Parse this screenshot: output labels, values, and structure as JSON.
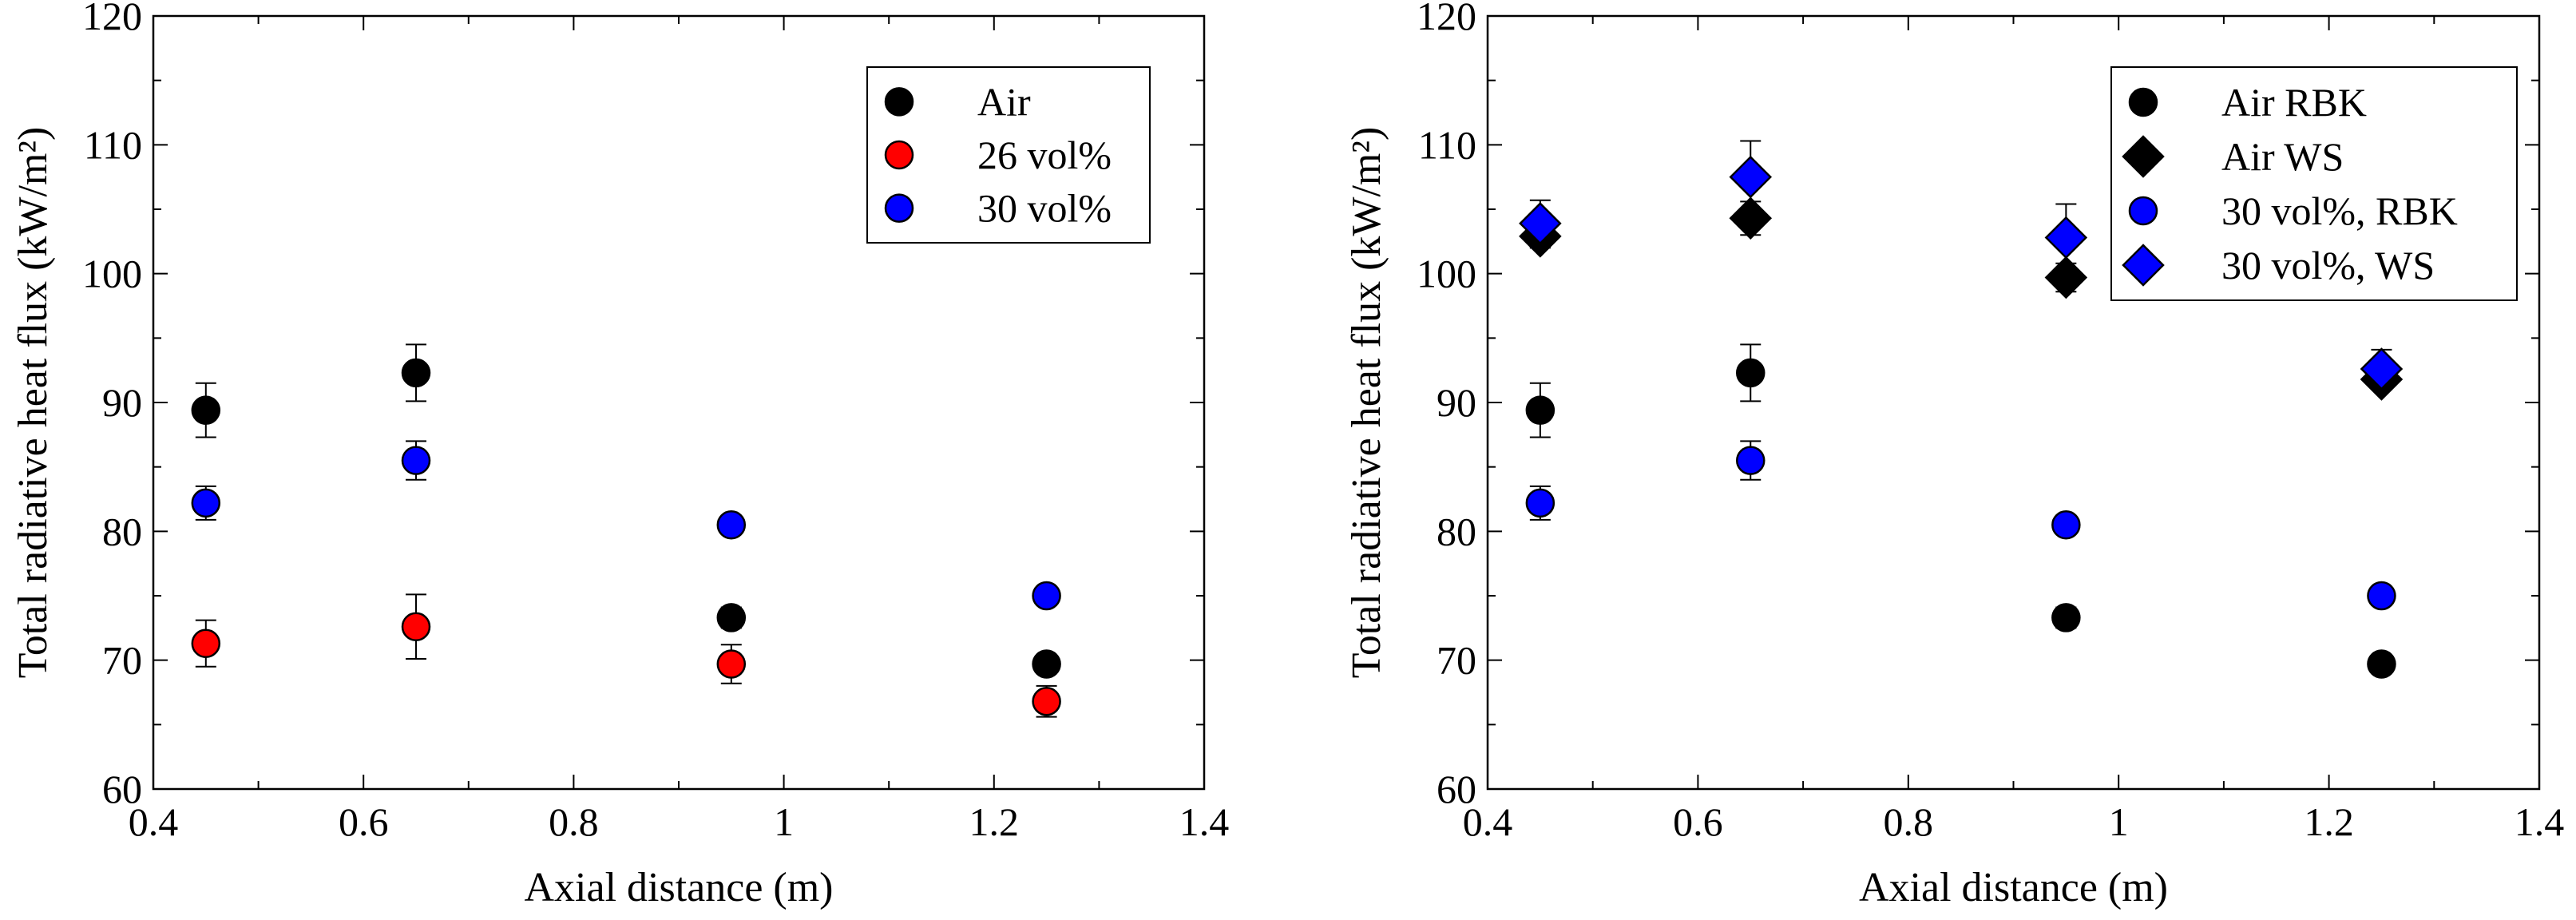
{
  "chart_data": [
    {
      "type": "scatter",
      "title": "",
      "xlabel": "Axial distance (m)",
      "ylabel": "Total radiative heat flux (kW/m²)",
      "xlim": [
        0.4,
        1.4
      ],
      "ylim": [
        60,
        120
      ],
      "xticks": [
        0.4,
        0.6,
        0.8,
        1,
        1.2,
        1.4
      ],
      "xtick_labels": [
        "0.4",
        "0.6",
        "0.8",
        "1",
        "1.2",
        "1.4"
      ],
      "yticks": [
        60,
        70,
        80,
        90,
        100,
        110,
        120
      ],
      "ytick_labels": [
        "60",
        "70",
        "80",
        "90",
        "100",
        "110",
        "120"
      ],
      "legend_position": "top-right",
      "series": [
        {
          "name": "Air",
          "marker": "circle",
          "color": "#000000",
          "x": [
            0.45,
            0.65,
            0.95,
            1.25
          ],
          "y": [
            89.4,
            92.3,
            73.3,
            69.7
          ],
          "err": [
            2.1,
            2.2,
            0.8,
            0.6
          ]
        },
        {
          "name": "26 vol%",
          "marker": "circle",
          "color": "#ff0000",
          "x": [
            0.45,
            0.65,
            0.95,
            1.25
          ],
          "y": [
            71.3,
            72.6,
            69.7,
            66.8
          ],
          "err": [
            1.8,
            2.5,
            1.5,
            1.2
          ]
        },
        {
          "name": "30 vol%",
          "marker": "circle",
          "color": "#0000ff",
          "x": [
            0.45,
            0.65,
            0.95,
            1.25
          ],
          "y": [
            82.2,
            85.5,
            80.5,
            75.0
          ],
          "err": [
            1.3,
            1.5,
            0.3,
            0.3
          ]
        }
      ]
    },
    {
      "type": "scatter",
      "title": "",
      "xlabel": "Axial distance (m)",
      "ylabel": "Total radiative heat flux (kW/m²)",
      "xlim": [
        0.4,
        1.4
      ],
      "ylim": [
        60,
        120
      ],
      "xticks": [
        0.4,
        0.6,
        0.8,
        1,
        1.2,
        1.4
      ],
      "xtick_labels": [
        "0.4",
        "0.6",
        "0.8",
        "1",
        "1.2",
        "1.4"
      ],
      "yticks": [
        60,
        70,
        80,
        90,
        100,
        110,
        120
      ],
      "ytick_labels": [
        "60",
        "70",
        "80",
        "90",
        "100",
        "110",
        "120"
      ],
      "legend_position": "top-right",
      "series": [
        {
          "name": "Air RBK",
          "marker": "circle",
          "color": "#000000",
          "x": [
            0.45,
            0.65,
            0.95,
            1.25
          ],
          "y": [
            89.4,
            92.3,
            73.3,
            69.7
          ],
          "err": [
            2.1,
            2.2,
            0.8,
            0.6
          ]
        },
        {
          "name": "Air WS",
          "marker": "diamond",
          "color": "#000000",
          "x": [
            0.45,
            0.65,
            0.95,
            1.25
          ],
          "y": [
            102.9,
            104.3,
            99.7,
            91.8
          ],
          "err": [
            0.9,
            1.3,
            1.1,
            0.8
          ]
        },
        {
          "name": "30 vol%, RBK",
          "marker": "circle",
          "color": "#0000ff",
          "x": [
            0.45,
            0.65,
            0.95,
            1.25
          ],
          "y": [
            82.2,
            85.5,
            80.5,
            75.0
          ],
          "err": [
            1.3,
            1.5,
            0.3,
            0.3
          ]
        },
        {
          "name": "30 vol%, WS",
          "marker": "diamond",
          "color": "#0000ff",
          "x": [
            0.45,
            0.65,
            0.95,
            1.25
          ],
          "y": [
            103.9,
            107.5,
            102.8,
            92.6
          ],
          "err": [
            1.8,
            2.8,
            2.6,
            1.5
          ]
        }
      ]
    }
  ]
}
